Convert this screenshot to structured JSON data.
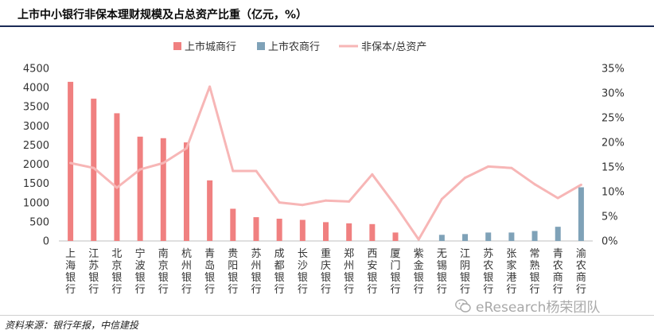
{
  "title": "上市中小银行非保本理财规模及占总资产比重（亿元，%）",
  "source": "资料来源：银行年报，中信建投",
  "watermark": "eResearch杨荣团队",
  "chart_data": {
    "type": "bar",
    "categories": [
      "上海银行",
      "江苏银行",
      "北京银行",
      "宁波银行",
      "南京银行",
      "杭州银行",
      "青岛银行",
      "贵阳银行",
      "苏州银行",
      "成都银行",
      "长沙银行",
      "重庆银行",
      "郑州银行",
      "西安银行",
      "厦门银行",
      "紫金银行",
      "无锡银行",
      "江阴银行",
      "苏农银行",
      "张家港行",
      "常熟银行",
      "青农商行",
      "渝农商行"
    ],
    "series": [
      {
        "name": "上市城商行",
        "type": "bar",
        "axis": "left",
        "color": "#f08080",
        "values": [
          4150,
          3710,
          3330,
          2720,
          2680,
          2570,
          1580,
          840,
          620,
          580,
          550,
          490,
          460,
          440,
          220,
          null,
          null,
          null,
          null,
          null,
          null,
          null,
          null
        ]
      },
      {
        "name": "上市农商行",
        "type": "bar",
        "axis": "left",
        "color": "#7fa2b8",
        "values": [
          null,
          null,
          null,
          null,
          null,
          null,
          null,
          null,
          null,
          null,
          null,
          null,
          null,
          null,
          null,
          0,
          160,
          180,
          220,
          220,
          260,
          370,
          1400
        ]
      },
      {
        "name": "非保本/总资产",
        "type": "line",
        "axis": "right",
        "color": "#f7b6b6",
        "values": [
          15.8,
          14.8,
          10.8,
          14.5,
          15.8,
          18.8,
          31.3,
          14.2,
          14.2,
          7.8,
          7.3,
          8.2,
          8.0,
          13.5,
          7.2,
          0.3,
          8.5,
          12.8,
          15.1,
          14.8,
          11.5,
          8.7,
          11.4
        ]
      }
    ],
    "left_axis": {
      "min": 0,
      "max": 4500,
      "ticks": [
        "0",
        "500",
        "1000",
        "1500",
        "2000",
        "2500",
        "3000",
        "3500",
        "4000",
        "4500"
      ]
    },
    "right_axis": {
      "min": 0,
      "max": 35,
      "ticks": [
        "0%",
        "5%",
        "10%",
        "15%",
        "20%",
        "25%",
        "30%",
        "35%"
      ]
    },
    "legend_position": "top-center",
    "grid": false
  }
}
